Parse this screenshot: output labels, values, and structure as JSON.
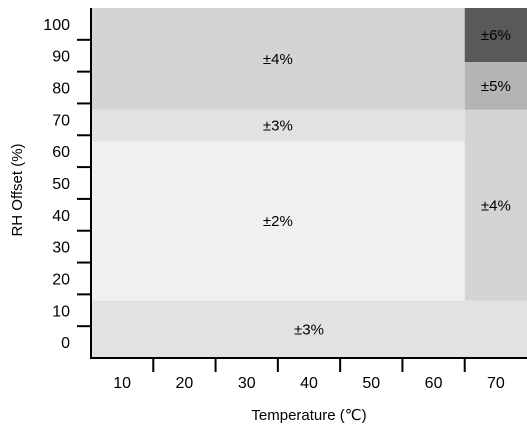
{
  "chart_data": {
    "type": "heatmap",
    "title": "",
    "xlabel": "Temperature (℃)",
    "ylabel": "RH Offset (%)",
    "xlim": [
      5,
      75
    ],
    "ylim": [
      -5,
      105
    ],
    "x_ticks": [
      10,
      20,
      30,
      40,
      50,
      60,
      70
    ],
    "y_ticks": [
      0,
      10,
      20,
      30,
      40,
      50,
      60,
      70,
      80,
      90,
      100
    ],
    "x_tick_marks": [
      15,
      25,
      35,
      45,
      55,
      65
    ],
    "y_tick_marks": [
      5,
      15,
      25,
      35,
      45,
      55,
      65,
      75,
      85,
      95
    ],
    "regions": [
      {
        "label": "±4%",
        "x": [
          5,
          65
        ],
        "y": [
          73,
          105
        ],
        "color": "#d4d4d4"
      },
      {
        "label": "±3%",
        "x": [
          5,
          65
        ],
        "y": [
          63,
          73
        ],
        "color": "#e2e2e2"
      },
      {
        "label": "±2%",
        "x": [
          5,
          65
        ],
        "y": [
          13,
          63
        ],
        "color": "#f0f0f0"
      },
      {
        "label": "±3%",
        "x": [
          5,
          75
        ],
        "y": [
          -5,
          13
        ],
        "color": "#e2e2e2"
      },
      {
        "label": "±6%",
        "x": [
          65,
          75
        ],
        "y": [
          88,
          105
        ],
        "color": "#595959"
      },
      {
        "label": "±5%",
        "x": [
          65,
          75
        ],
        "y": [
          73,
          88
        ],
        "color": "#b4b4b4"
      },
      {
        "label": "±4%",
        "x": [
          65,
          75
        ],
        "y": [
          13,
          73
        ],
        "color": "#d4d4d4"
      }
    ],
    "grid": false,
    "legend": "none"
  }
}
